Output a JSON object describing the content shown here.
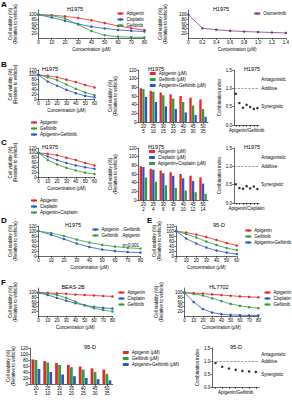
{
  "chart_data": [
    {
      "panel": "A",
      "type": "line",
      "title": "H1975",
      "xlabel": "Concentration (μM)",
      "ylabel": "Cell viability (%)\n(Relative to vehicle)",
      "categories": [
        "0",
        "10",
        "20",
        "30",
        "40",
        "50",
        "60",
        "70",
        "80"
      ],
      "series": [
        {
          "name": "Apigenin",
          "color": "#e8272a",
          "values": [
            100,
            98,
            93,
            86,
            76,
            64,
            52,
            42,
            34
          ]
        },
        {
          "name": "Cisplatin",
          "color": "#2a56c6",
          "values": [
            100,
            88,
            74,
            60,
            49,
            41,
            35,
            31,
            28
          ]
        },
        {
          "name": "Gefitinib",
          "color": "#2e9e3e",
          "values": [
            100,
            96,
            84,
            58,
            30,
            12,
            6,
            4,
            3
          ]
        }
      ],
      "ylim": [
        0,
        120
      ],
      "yticks": [
        0,
        20,
        40,
        60,
        80,
        100,
        120
      ],
      "legend": "upper right"
    },
    {
      "type": "line",
      "title": "H1975",
      "xlabel": "Concentration (μM)",
      "ylabel": "Cell viability (%)\n(Relative to vehicle)",
      "categories": [
        "0",
        "0.2",
        "0.4",
        "0.6",
        "0.8",
        "1.0",
        "1.2",
        "1.4"
      ],
      "series": [
        {
          "name": "Osimertinib",
          "color": "#7a3b91",
          "values": [
            100,
            42,
            36,
            31,
            28,
            26,
            24,
            22
          ]
        }
      ],
      "ylim": [
        0,
        120
      ],
      "yticks": [
        0,
        20,
        40,
        60,
        80,
        100,
        120
      ],
      "legend": "upper right"
    },
    {
      "panel": "B",
      "type": "line",
      "title": "H1975",
      "xlabel": "Concentration (μM)",
      "ylabel": "Cell viability (%)\n(Relative to vehicle)",
      "categories": [
        "0",
        "10",
        "20",
        "30",
        "40",
        "50",
        "60"
      ],
      "series": [
        {
          "name": "Apigenin",
          "color": "#e8272a",
          "values": [
            100,
            96,
            90,
            80,
            70,
            58,
            48
          ]
        },
        {
          "name": "Gefitinib",
          "color": "#2e9e3e",
          "values": [
            100,
            90,
            78,
            60,
            42,
            27,
            16
          ]
        },
        {
          "name": "Apigenin+Gefitinib",
          "color": "#2a56c6",
          "values": [
            100,
            72,
            55,
            38,
            24,
            13,
            7
          ]
        }
      ],
      "ylim": [
        0,
        120
      ],
      "yticks": [
        0,
        20,
        40,
        60,
        80,
        100,
        120
      ],
      "legend": "bottom"
    },
    {
      "type": "bar",
      "title": "H1975",
      "ylabel": "Cell viability (%)\n(Relative to vehicle)",
      "categories": [
        "20\n5",
        "25\n10",
        "30\n15",
        "35\n20",
        "40\n25",
        "45\n30",
        "50\n35"
      ],
      "series": [
        {
          "name": "Apigenin (μM)",
          "color": "#e8272a",
          "values": [
            78,
            72,
            68,
            64,
            60,
            56,
            52
          ]
        },
        {
          "name": "Gefitinib (μM)",
          "color": "#2e9e3e",
          "values": [
            76,
            70,
            62,
            54,
            46,
            38,
            30
          ]
        },
        {
          "name": "Apigenin+Gefitinib (μM)",
          "color": "#2a56c6",
          "values": [
            58,
            46,
            36,
            30,
            22,
            16,
            12
          ]
        }
      ],
      "ylim": [
        0,
        120
      ],
      "yticks": [
        0,
        20,
        40,
        60,
        80,
        100,
        120
      ],
      "legend": "upper right"
    },
    {
      "type": "scatter",
      "title": "H1975",
      "xlabel": "Apigenin/Gefitinib",
      "ylabel": "Combination index",
      "categories": [
        null,
        null,
        null,
        null,
        null,
        null,
        null
      ],
      "values": [
        0.85,
        0.6,
        0.47,
        0.55,
        0.49,
        0.44,
        0.46
      ],
      "color": "#000000",
      "reference_line": 1,
      "annotations": [
        "Antagonistic",
        "Additive",
        "Synergistic"
      ],
      "ylim": [
        0,
        1.5
      ],
      "yticks": [
        {
          "value": 0,
          "label": "0.0"
        },
        0.5,
        {
          "value": 1,
          "label": "1.0"
        },
        1.5
      ],
      "tick_labels": "y"
    },
    {
      "panel": "C",
      "type": "line",
      "title": "H1975",
      "xlabel": "Concentration (μM)",
      "ylabel": "Cell viability (%)\n(Relative to vehicle)",
      "categories": [
        "0",
        "10",
        "20",
        "30",
        "40",
        "50",
        "60"
      ],
      "series": [
        {
          "name": "Apigenin",
          "color": "#e8272a",
          "values": [
            100,
            96,
            90,
            80,
            70,
            58,
            48
          ]
        },
        {
          "name": "Cisplatin",
          "color": "#2a56c6",
          "values": [
            100,
            85,
            70,
            58,
            48,
            40,
            34
          ]
        },
        {
          "name": "Apigenin+Cisplatin",
          "color": "#2e9e3e",
          "values": [
            100,
            70,
            52,
            38,
            27,
            18,
            12
          ]
        }
      ],
      "ylim": [
        0,
        120
      ],
      "yticks": [
        0,
        20,
        40,
        60,
        80,
        100,
        120
      ],
      "legend": "bottom"
    },
    {
      "type": "bar",
      "title": "H1975",
      "ylabel": "Cell viability (%)\n(Relative to vehicle)",
      "categories": [
        "20\n2",
        "25\n4",
        "30\n6",
        "35\n8",
        "40\n10",
        "45\n12",
        "50\n14"
      ],
      "series": [
        {
          "name": "Apigenin (μM)",
          "color": "#e8272a",
          "values": [
            78,
            72,
            68,
            64,
            60,
            56,
            52
          ]
        },
        {
          "name": "Cisplatin (μM)",
          "color": "#2a56c6",
          "values": [
            76,
            70,
            62,
            56,
            50,
            44,
            38
          ]
        },
        {
          "name": "Apigenin+Cisplatin (μM)",
          "color": "#2e9e3e",
          "values": [
            52,
            42,
            34,
            28,
            22,
            18,
            14
          ]
        }
      ],
      "ylim": [
        0,
        120
      ],
      "yticks": [
        0,
        20,
        40,
        60,
        80,
        100,
        120
      ],
      "legend": "upper right"
    },
    {
      "type": "scatter",
      "title": "H1975",
      "xlabel": "Apigenin/Cisplatin",
      "ylabel": "Combination index",
      "categories": [
        null,
        null,
        null,
        null,
        null,
        null,
        null
      ],
      "values": [
        0.51,
        0.41,
        0.39,
        0.46,
        0.4,
        0.45,
        0.38
      ],
      "color": "#000000",
      "reference_line": 1,
      "annotations": [
        "Antagonistic",
        "Additive",
        "Synergistic"
      ],
      "ylim": [
        0,
        1.5
      ],
      "yticks": [
        {
          "value": 0,
          "label": "0.0"
        },
        0.5,
        {
          "value": 1,
          "label": "1.0"
        },
        1.5
      ],
      "tick_labels": "y"
    },
    {
      "panel": "D",
      "type": "line",
      "title": "H1975",
      "xlabel": "Concentration (μM)",
      "ylabel": "Cell viability (%)\n(Relative to vehicle)",
      "categories": [
        "0",
        "10",
        "20",
        "30",
        "40",
        "50",
        "60",
        "70",
        "80"
      ],
      "series": [
        {
          "name": "Apigenin→Gefitinib",
          "color": "#2a56c6",
          "values": [
            100,
            85,
            68,
            50,
            36,
            26,
            20,
            16,
            14
          ]
        },
        {
          "name": "Gefitinib→Apigenin",
          "color": "#2e9e3e",
          "values": [
            100,
            92,
            80,
            66,
            54,
            45,
            38,
            33,
            30
          ]
        }
      ],
      "annotations": [
        "p<0.001"
      ],
      "ylim": [
        0,
        120
      ],
      "yticks": [
        0,
        20,
        40,
        60,
        80,
        100,
        120
      ],
      "legend": "upper right"
    },
    {
      "panel": "E",
      "type": "line",
      "title": "95-D",
      "xlabel": "Concentration (μM)",
      "ylabel": "Cell viability (%)\n(Relative to vehicle)",
      "categories": [
        "0",
        "10",
        "20",
        "30",
        "40",
        "50",
        "60"
      ],
      "series": [
        {
          "name": "Apigenin",
          "color": "#e8272a",
          "values": [
            100,
            94,
            86,
            76,
            64,
            52,
            42
          ]
        },
        {
          "name": "Gefitinib",
          "color": "#2e9e3e",
          "values": [
            100,
            88,
            74,
            58,
            44,
            32,
            24
          ]
        },
        {
          "name": "Apigenin+Gefitinib",
          "color": "#2a56c6",
          "values": [
            100,
            70,
            50,
            34,
            22,
            14,
            8
          ]
        }
      ],
      "ylim": [
        0,
        120
      ],
      "yticks": [
        0,
        20,
        40,
        60,
        80,
        100,
        120
      ],
      "legend": "right"
    },
    {
      "panel": "F",
      "type": "line",
      "title": "BEAS-2B",
      "xlabel": "Concentration (μM)",
      "ylabel": "Cell viability (%)\n(Relative to vehicle)",
      "categories": [
        "0",
        "10",
        "20",
        "30",
        "40",
        "50",
        "60",
        "70",
        "80"
      ],
      "series": [
        {
          "name": "Apigenin",
          "color": "#e8272a",
          "values": [
            100,
            99,
            97,
            95,
            92,
            90,
            88,
            86,
            84
          ]
        },
        {
          "name": "Cisplatin",
          "color": "#2a56c6",
          "values": [
            100,
            90,
            78,
            66,
            55,
            46,
            40,
            35,
            32
          ]
        },
        {
          "name": "Gefitinib",
          "color": "#2e9e3e",
          "values": [
            100,
            97,
            90,
            78,
            62,
            46,
            34,
            26,
            20
          ]
        }
      ],
      "ylim": [
        0,
        120
      ],
      "yticks": [
        0,
        20,
        40,
        60,
        80,
        100,
        120
      ],
      "legend": "right"
    },
    {
      "type": "line",
      "title": "HL7702",
      "xlabel": "Concentration (μM)",
      "ylabel": "Cell viability (%)\n(Relative to vehicle)",
      "categories": [
        "0",
        "10",
        "20",
        "30",
        "40",
        "50",
        "60",
        "70",
        "80"
      ],
      "series": [
        {
          "name": "Apigenin",
          "color": "#e8272a",
          "values": [
            100,
            98,
            96,
            93,
            90,
            87,
            84,
            82,
            80
          ]
        },
        {
          "name": "Cisplatin",
          "color": "#2a56c6",
          "values": [
            100,
            60,
            30,
            15,
            8,
            5,
            4,
            3,
            3
          ]
        },
        {
          "name": "Gefitinib",
          "color": "#2e9e3e",
          "values": [
            100,
            95,
            88,
            76,
            64,
            52,
            44,
            38,
            34
          ]
        }
      ],
      "ylim": [
        0,
        120
      ],
      "yticks": [
        0,
        20,
        40,
        60,
        80,
        100,
        120
      ],
      "legend": "right"
    },
    {
      "type": "bar",
      "title": "95-D",
      "ylabel": "Cell viability (%)\n(Relative to vehicle)",
      "categories": [
        "20\n5",
        "25\n10",
        "30\n15",
        "35\n20",
        "40\n25",
        "45\n30",
        "50\n35"
      ],
      "series": [
        {
          "name": "Apigenin (μM)",
          "color": "#e8272a",
          "values": [
            82,
            76,
            70,
            64,
            58,
            52,
            48
          ]
        },
        {
          "name": "Gefitinib (μM)",
          "color": "#2e9e3e",
          "values": [
            80,
            72,
            64,
            56,
            48,
            40,
            34
          ]
        },
        {
          "name": "Apigenin+Gefitinib (μM)",
          "color": "#2a56c6",
          "values": [
            50,
            40,
            32,
            26,
            20,
            16,
            12
          ]
        }
      ],
      "ylim": [
        0,
        120
      ],
      "yticks": [
        0,
        20,
        40,
        60,
        80,
        100,
        120
      ],
      "legend": "right"
    },
    {
      "type": "scatter",
      "title": "95-D",
      "xlabel": "Apigenin/Gefitinib",
      "ylabel": "Combination index",
      "categories": [
        null,
        null,
        null,
        null,
        null,
        null,
        null
      ],
      "values": [
        0.92,
        0.78,
        0.71,
        0.66,
        0.62,
        0.6,
        0.58
      ],
      "color": "#000000",
      "reference_line": 1,
      "annotations": [
        "Antagonistic",
        "Additive",
        "Synergistic"
      ],
      "ylim": [
        0,
        1.5
      ],
      "yticks": [
        {
          "value": 0,
          "label": "0.0"
        },
        0.5,
        {
          "value": 1,
          "label": "1.0"
        },
        1.5
      ],
      "tick_labels": "y"
    }
  ]
}
